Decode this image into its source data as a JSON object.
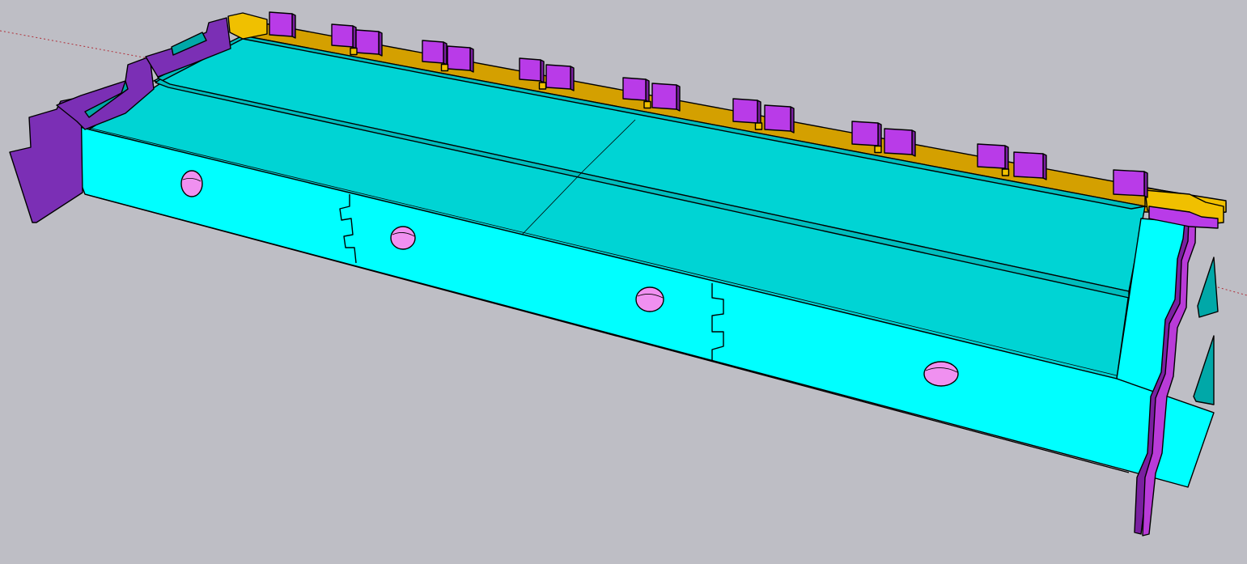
{
  "window": {
    "type": "3D modeling viewport"
  },
  "viewport": {
    "background": "#BEBEC5",
    "axis_color": "#B0303A"
  },
  "model": {
    "name": "",
    "colors": {
      "front_panel": "#00FFFF",
      "floor_panel": "#00D4D4",
      "floor_panel_dark": "#00BDBD",
      "back_panel": "#D4A000",
      "back_panel_light": "#F0C000",
      "end_panel": "#7B2FB5",
      "end_panel_light": "#B93BD8",
      "tab": "#B93BE8",
      "tab_dark": "#7A1FA0",
      "hole": "#F090F0",
      "inner_wall": "#00A8A8"
    },
    "front_holes": 4,
    "front_finger_joints": 2,
    "back_tabs": 16,
    "tab_groups": 8
  }
}
